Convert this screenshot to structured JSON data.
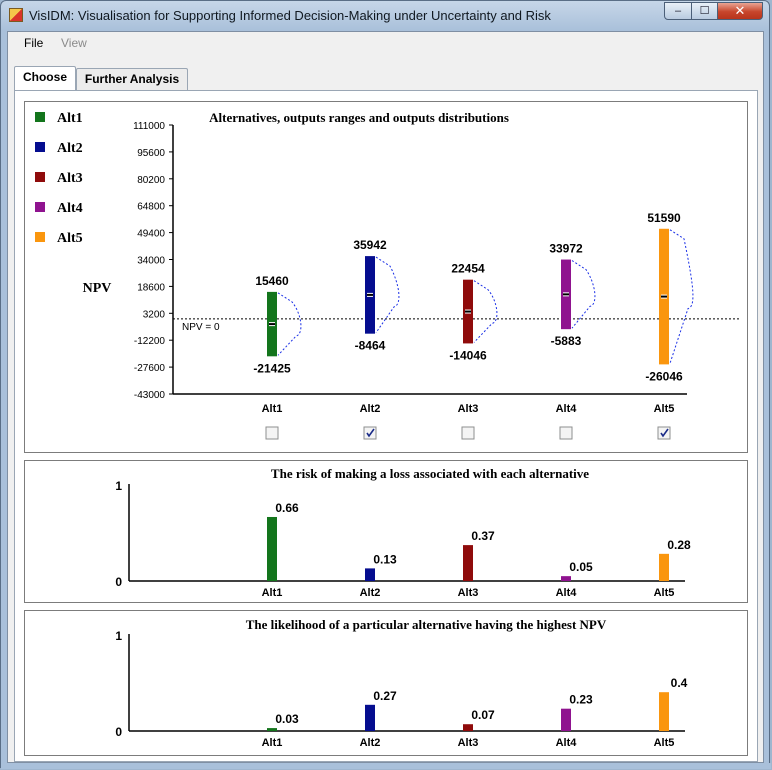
{
  "window": {
    "title": "VisIDM: Visualisation for Supporting Informed Decision-Making under Uncertainty and Risk",
    "controls": {
      "minimize": "–",
      "maximize": "☐",
      "close": "✕"
    }
  },
  "menu": {
    "items": [
      "File",
      "View"
    ]
  },
  "tabs": [
    "Choose",
    "Further Analysis"
  ],
  "colors": {
    "Alt1": "#13751c",
    "Alt2": "#050d8f",
    "Alt3": "#8f0b0b",
    "Alt4": "#8f138f",
    "Alt5": "#fa960e",
    "dist_line": "#1a2fe6"
  },
  "legend": [
    "Alt1",
    "Alt2",
    "Alt3",
    "Alt4",
    "Alt5"
  ],
  "chart_data": [
    {
      "type": "range",
      "title": "Alternatives, outputs ranges and outputs distributions",
      "ylabel": "NPV",
      "ylim": [
        -43000,
        111000
      ],
      "yticks": [
        "111000",
        "95600",
        "80200",
        "64800",
        "49400",
        "34000",
        "18600",
        "3200",
        "-12200",
        "-27600",
        "-43000"
      ],
      "reference_line": {
        "value": 0,
        "label": "NPV = 0"
      },
      "categories": [
        "Alt1",
        "Alt2",
        "Alt3",
        "Alt4",
        "Alt5"
      ],
      "max_values": [
        15460,
        35942,
        22454,
        33972,
        51590
      ],
      "min_values": [
        -21425,
        -8464,
        -14046,
        -5883,
        -26046
      ],
      "max_labels": [
        "15460",
        "35942",
        "22454",
        "33972",
        "51590"
      ],
      "min_labels": [
        "-21425",
        "-8464",
        "-14046",
        "-5883",
        "-26046"
      ],
      "checkboxes": [
        false,
        true,
        false,
        false,
        true
      ]
    },
    {
      "type": "bar",
      "title": "The risk of making a loss associated with each alternative",
      "ylim": [
        0,
        1
      ],
      "yticks": [
        "1",
        "0"
      ],
      "categories": [
        "Alt1",
        "Alt2",
        "Alt3",
        "Alt4",
        "Alt5"
      ],
      "values": [
        0.66,
        0.13,
        0.37,
        0.05,
        0.28
      ],
      "labels": [
        "0.66",
        "0.13",
        "0.37",
        "0.05",
        "0.28"
      ]
    },
    {
      "type": "bar",
      "title": "The likelihood of a particular alternative having the highest NPV",
      "ylim": [
        0,
        1
      ],
      "yticks": [
        "1",
        "0"
      ],
      "categories": [
        "Alt1",
        "Alt2",
        "Alt3",
        "Alt4",
        "Alt5"
      ],
      "values": [
        0.03,
        0.27,
        0.07,
        0.23,
        0.4
      ],
      "labels": [
        "0.03",
        "0.27",
        "0.07",
        "0.23",
        "0.4"
      ]
    }
  ]
}
